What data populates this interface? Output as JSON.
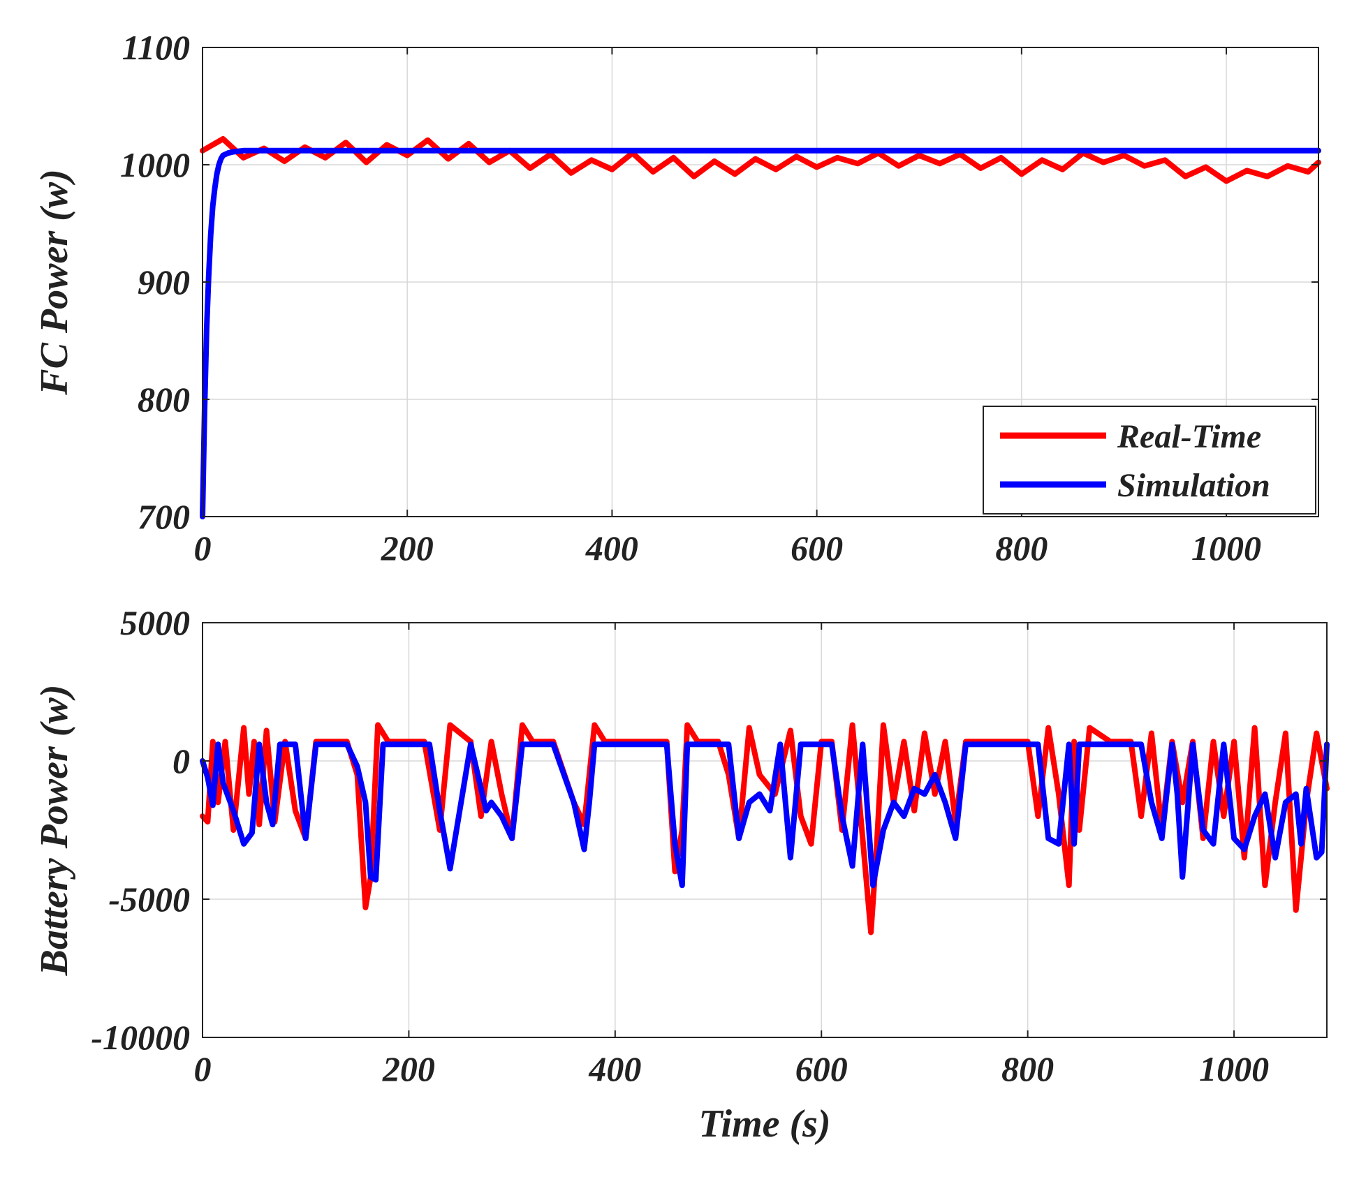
{
  "chart_data": [
    {
      "type": "line",
      "ylabel": "FC Power (w)",
      "xlabel": "",
      "xlim": [
        0,
        1090
      ],
      "ylim": [
        700,
        1100
      ],
      "xticks": [
        0,
        200,
        400,
        600,
        800,
        1000
      ],
      "yticks": [
        700,
        800,
        900,
        1000,
        1100
      ],
      "grid": true,
      "legend_position": "bottom-right",
      "series": [
        {
          "name": "Real-Time",
          "color": "#ff0000",
          "x": [
            0,
            20,
            40,
            60,
            80,
            100,
            120,
            140,
            160,
            180,
            200,
            220,
            240,
            260,
            280,
            300,
            320,
            340,
            360,
            380,
            400,
            420,
            440,
            460,
            480,
            500,
            520,
            540,
            560,
            580,
            600,
            620,
            640,
            660,
            680,
            700,
            720,
            740,
            760,
            780,
            800,
            820,
            840,
            860,
            880,
            900,
            920,
            940,
            960,
            980,
            1000,
            1020,
            1040,
            1060,
            1080,
            1090
          ],
          "y": [
            1012,
            1022,
            1006,
            1014,
            1003,
            1015,
            1006,
            1019,
            1002,
            1017,
            1008,
            1021,
            1005,
            1018,
            1002,
            1012,
            997,
            1009,
            993,
            1004,
            996,
            1010,
            994,
            1006,
            990,
            1003,
            992,
            1005,
            996,
            1007,
            998,
            1006,
            1001,
            1010,
            999,
            1008,
            1001,
            1009,
            997,
            1006,
            992,
            1004,
            996,
            1010,
            1002,
            1008,
            999,
            1004,
            990,
            998,
            986,
            995,
            990,
            999,
            994,
            1002
          ]
        },
        {
          "name": "Simulation",
          "color": "#0000ff",
          "x": [
            0,
            2,
            4,
            6,
            8,
            10,
            12,
            14,
            16,
            18,
            20,
            25,
            30,
            40,
            60,
            100,
            200,
            400,
            600,
            800,
            1000,
            1090
          ],
          "y": [
            700,
            790,
            860,
            905,
            940,
            965,
            980,
            992,
            1000,
            1005,
            1008,
            1010,
            1011,
            1012,
            1012,
            1012,
            1012,
            1012,
            1012,
            1012,
            1012,
            1012
          ]
        }
      ],
      "legend": [
        "Real-Time",
        "Simulation"
      ]
    },
    {
      "type": "line",
      "ylabel": "Battery Power (w)",
      "xlabel": "Time (s)",
      "xlim": [
        0,
        1090
      ],
      "ylim": [
        -10000,
        5000
      ],
      "xticks": [
        0,
        200,
        400,
        600,
        800,
        1000
      ],
      "yticks": [
        -10000,
        -5000,
        0,
        5000
      ],
      "ytick_labels": [
        "-10000",
        "-5000",
        "0",
        "5000"
      ],
      "grid": true,
      "series": [
        {
          "name": "Real-Time",
          "color": "#ff0000",
          "x": [
            0,
            5,
            10,
            15,
            22,
            30,
            40,
            45,
            50,
            55,
            62,
            70,
            80,
            90,
            100,
            110,
            120,
            140,
            150,
            158,
            163,
            170,
            180,
            190,
            200,
            215,
            230,
            240,
            260,
            270,
            280,
            290,
            300,
            310,
            320,
            340,
            360,
            370,
            380,
            390,
            400,
            420,
            440,
            450,
            458,
            465,
            470,
            480,
            500,
            510,
            520,
            530,
            540,
            555,
            570,
            580,
            590,
            600,
            610,
            620,
            630,
            640,
            648,
            653,
            660,
            670,
            680,
            690,
            700,
            710,
            720,
            730,
            740,
            760,
            780,
            800,
            810,
            820,
            830,
            840,
            845,
            850,
            860,
            880,
            900,
            910,
            920,
            930,
            940,
            950,
            960,
            970,
            980,
            990,
            1000,
            1010,
            1020,
            1030,
            1040,
            1050,
            1060,
            1065,
            1070,
            1080,
            1090
          ],
          "y": [
            -2000,
            -2200,
            700,
            -1500,
            700,
            -2500,
            1200,
            -1200,
            700,
            -2300,
            1100,
            -2200,
            700,
            -1800,
            -2800,
            700,
            700,
            700,
            -500,
            -5300,
            -4200,
            1300,
            700,
            700,
            700,
            700,
            -2500,
            1300,
            700,
            -2000,
            700,
            -1200,
            -2800,
            1300,
            700,
            700,
            -1500,
            -2300,
            1300,
            700,
            700,
            700,
            700,
            700,
            -4000,
            -2500,
            1300,
            700,
            700,
            -500,
            -2800,
            1200,
            -500,
            -1200,
            1100,
            -2000,
            -3000,
            700,
            700,
            -2500,
            1300,
            -2800,
            -6200,
            -3500,
            1300,
            -1500,
            700,
            -1800,
            1000,
            -1200,
            700,
            -2200,
            700,
            700,
            700,
            700,
            -2000,
            1200,
            -1200,
            -4500,
            700,
            -2500,
            1200,
            700,
            700,
            -2000,
            1000,
            -2500,
            700,
            -1500,
            700,
            -2800,
            700,
            -2000,
            700,
            -3500,
            1200,
            -4500,
            -1500,
            1000,
            -5400,
            -3500,
            -1500,
            1000,
            -1000
          ]
        },
        {
          "name": "Simulation",
          "color": "#0000ff",
          "x": [
            0,
            5,
            10,
            15,
            20,
            30,
            40,
            48,
            55,
            62,
            68,
            75,
            80,
            90,
            100,
            110,
            120,
            140,
            150,
            158,
            163,
            168,
            175,
            180,
            190,
            200,
            220,
            230,
            240,
            260,
            275,
            280,
            290,
            300,
            310,
            320,
            340,
            360,
            370,
            375,
            380,
            390,
            400,
            420,
            440,
            450,
            458,
            465,
            470,
            480,
            500,
            510,
            520,
            530,
            540,
            550,
            560,
            570,
            580,
            590,
            600,
            610,
            620,
            630,
            640,
            650,
            660,
            670,
            680,
            690,
            700,
            710,
            720,
            730,
            740,
            760,
            780,
            800,
            810,
            820,
            830,
            840,
            845,
            850,
            860,
            880,
            900,
            910,
            920,
            930,
            940,
            945,
            950,
            960,
            970,
            980,
            990,
            1000,
            1010,
            1020,
            1030,
            1040,
            1050,
            1060,
            1065,
            1070,
            1080,
            1085,
            1090
          ],
          "y": [
            0,
            -600,
            -1600,
            600,
            -800,
            -1800,
            -3000,
            -2600,
            600,
            -1500,
            -2300,
            600,
            600,
            600,
            -2800,
            600,
            600,
            600,
            -200,
            -1500,
            -4200,
            -4300,
            600,
            600,
            600,
            600,
            600,
            -1800,
            -3900,
            600,
            -1800,
            -1500,
            -2000,
            -2800,
            600,
            600,
            600,
            -1500,
            -3200,
            -1500,
            600,
            600,
            600,
            600,
            600,
            600,
            -3000,
            -4500,
            600,
            600,
            600,
            600,
            -2800,
            -1500,
            -1200,
            -1800,
            600,
            -3500,
            600,
            600,
            600,
            600,
            -2000,
            -3800,
            600,
            -4500,
            -2500,
            -1500,
            -2000,
            -1000,
            -1200,
            -500,
            -1500,
            -2800,
            600,
            600,
            600,
            600,
            600,
            -2800,
            -3000,
            600,
            -3000,
            600,
            600,
            600,
            600,
            600,
            -1500,
            -2800,
            600,
            -1200,
            -4200,
            600,
            -2500,
            -3000,
            600,
            -2800,
            -3200,
            -2000,
            -1200,
            -3500,
            -1500,
            -1200,
            -3000,
            -1000,
            -3500,
            -3300,
            600
          ]
        }
      ]
    }
  ]
}
